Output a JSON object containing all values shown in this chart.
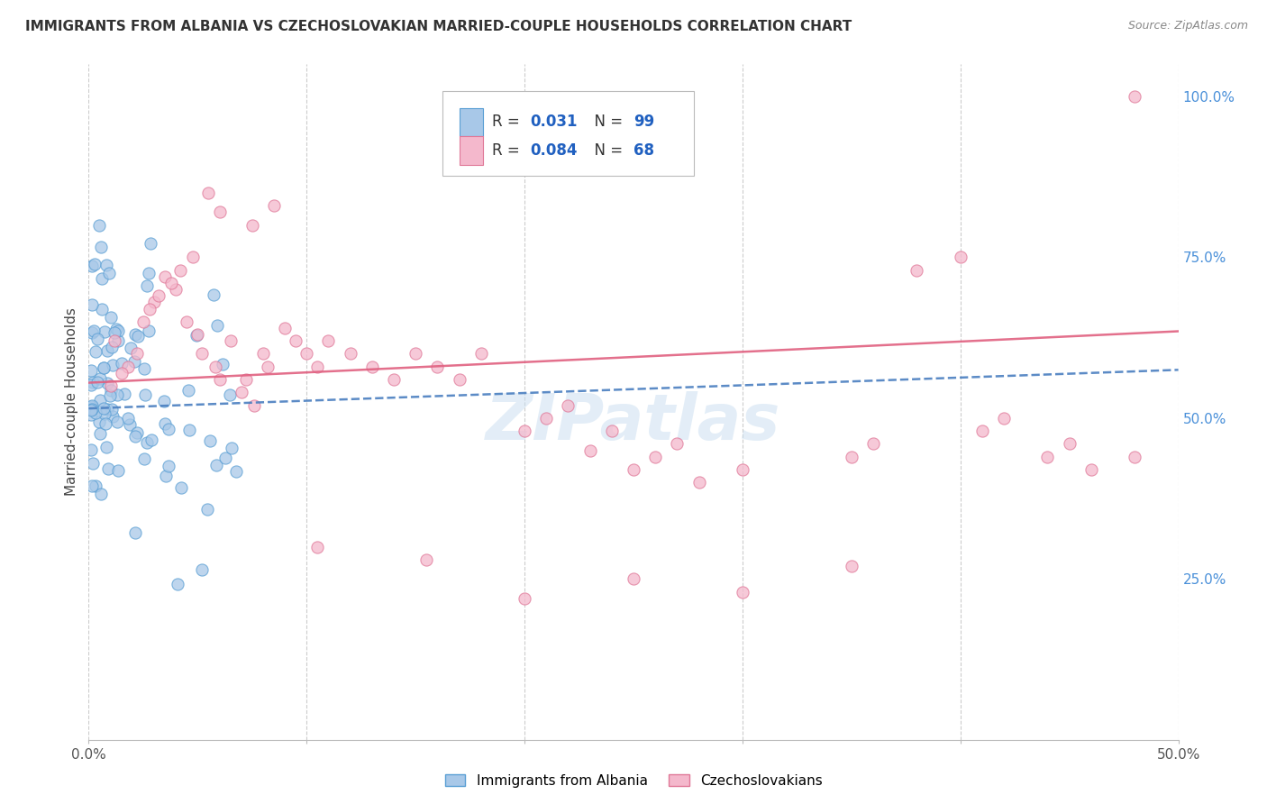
{
  "title": "IMMIGRANTS FROM ALBANIA VS CZECHOSLOVAKIAN MARRIED-COUPLE HOUSEHOLDS CORRELATION CHART",
  "source": "Source: ZipAtlas.com",
  "ylabel": "Married-couple Households",
  "xlim": [
    0.0,
    0.5
  ],
  "ylim": [
    0.0,
    1.05
  ],
  "x_ticks": [
    0.0,
    0.1,
    0.2,
    0.3,
    0.4,
    0.5
  ],
  "x_tick_labels": [
    "0.0%",
    "",
    "",
    "",
    "",
    "50.0%"
  ],
  "y_ticks_right": [
    0.0,
    0.25,
    0.5,
    0.75,
    1.0
  ],
  "y_tick_labels_right": [
    "",
    "25.0%",
    "50.0%",
    "75.0%",
    "100.0%"
  ],
  "albania_R": 0.031,
  "albania_N": 99,
  "czech_R": 0.084,
  "czech_N": 68,
  "albania_color": "#a8c8e8",
  "albania_edge": "#5a9fd4",
  "czech_color": "#f4b8cc",
  "czech_edge": "#e07898",
  "albania_line_color": "#4a7fc0",
  "czech_line_color": "#e06080",
  "watermark": "ZIPatlas",
  "background_color": "#ffffff",
  "grid_color": "#cccccc",
  "albania_trend_x0": 0.0,
  "albania_trend_y0": 0.515,
  "albania_trend_x1": 0.5,
  "albania_trend_y1": 0.575,
  "czech_trend_x0": 0.0,
  "czech_trend_y0": 0.555,
  "czech_trend_x1": 0.5,
  "czech_trend_y1": 0.635
}
